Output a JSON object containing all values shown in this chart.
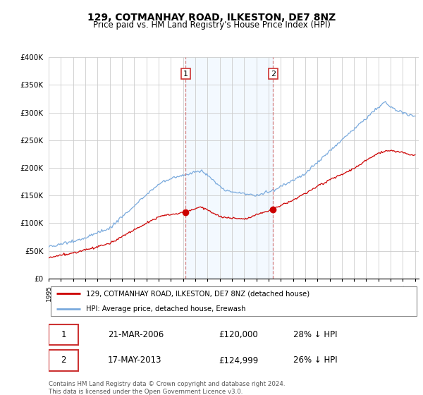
{
  "title": "129, COTMANHAY ROAD, ILKESTON, DE7 8NZ",
  "subtitle": "Price paid vs. HM Land Registry's House Price Index (HPI)",
  "ylabel_ticks": [
    "£0",
    "£50K",
    "£100K",
    "£150K",
    "£200K",
    "£250K",
    "£300K",
    "£350K",
    "£400K"
  ],
  "ylim": [
    0,
    400000
  ],
  "ytick_vals": [
    0,
    50000,
    100000,
    150000,
    200000,
    250000,
    300000,
    350000,
    400000
  ],
  "hpi_color": "#7aaadd",
  "house_color": "#cc0000",
  "marker1_date": 2006.22,
  "marker1_value": 120000,
  "marker2_date": 2013.38,
  "marker2_value": 124999,
  "vline_color": "#cc6666",
  "highlight_color": "#ddeeff",
  "legend_house": "129, COTMANHAY ROAD, ILKESTON, DE7 8NZ (detached house)",
  "legend_hpi": "HPI: Average price, detached house, Erewash",
  "table_row1": [
    "1",
    "21-MAR-2006",
    "£120,000",
    "28% ↓ HPI"
  ],
  "table_row2": [
    "2",
    "17-MAY-2013",
    "£124,999",
    "26% ↓ HPI"
  ],
  "footnote": "Contains HM Land Registry data © Crown copyright and database right 2024.\nThis data is licensed under the Open Government Licence v3.0.",
  "background_color": "#ffffff",
  "grid_color": "#cccccc"
}
